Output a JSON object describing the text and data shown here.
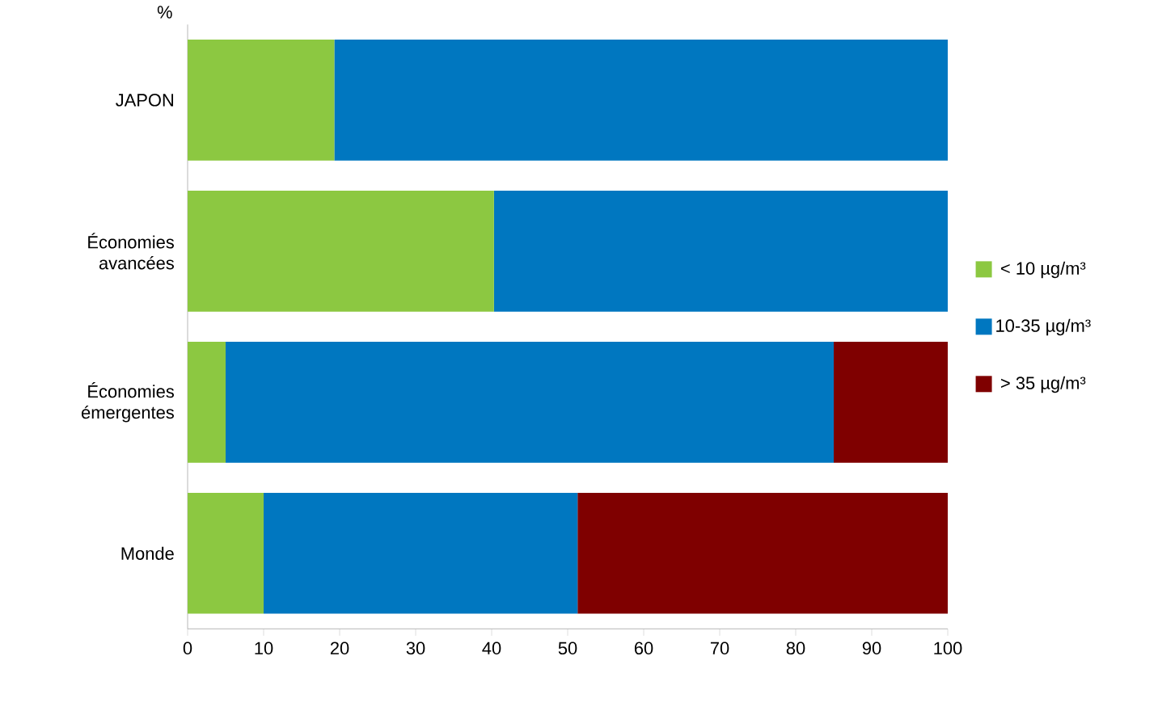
{
  "chart_data": {
    "type": "bar",
    "orientation": "horizontal",
    "stacked": true,
    "xlabel": "%",
    "categories": [
      "JAPON",
      "Économies avancées",
      "Économies émergentes",
      "Monde"
    ],
    "series": [
      {
        "name": "< 10 µg/m³",
        "color": "#8cc841",
        "values": [
          19.3,
          40.3,
          5,
          10
        ]
      },
      {
        "name": "10-35 µg/m³",
        "color": "#0077c0",
        "values": [
          80.7,
          59.7,
          80,
          41.3
        ]
      },
      {
        "name": "> 35 µg/m³",
        "color": "#7f0000",
        "values": [
          0,
          0,
          15,
          48.7
        ]
      }
    ],
    "xlim": [
      0,
      100
    ],
    "xticks": [
      0,
      10,
      20,
      30,
      40,
      50,
      60,
      70,
      80,
      90,
      100
    ],
    "grid": false,
    "legend": "right"
  }
}
